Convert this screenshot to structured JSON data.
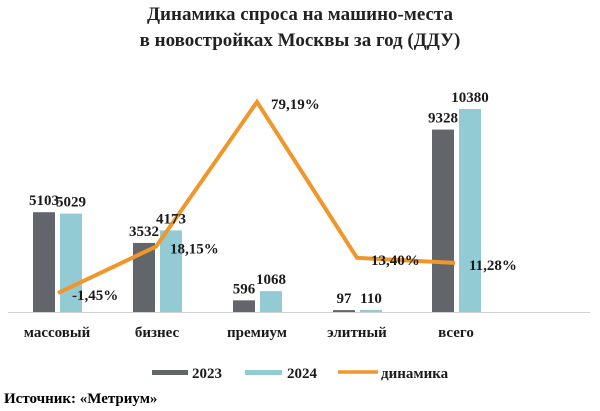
{
  "chart_data": {
    "type": "bar",
    "title": [
      "Динамика спроса на машино-места",
      "в новостройках Москвы за год (ДДУ)"
    ],
    "categories": [
      "массовый",
      "бизнес",
      "премиум",
      "элитный",
      "всего"
    ],
    "series": [
      {
        "name": "2023",
        "type": "bar",
        "color": "#62666b",
        "values": [
          5103,
          3532,
          596,
          97,
          9328
        ],
        "labels": [
          "5103",
          "3532",
          "596",
          "97",
          "9328"
        ]
      },
      {
        "name": "2024",
        "type": "bar",
        "color": "#92cbd3",
        "values": [
          5029,
          4173,
          1068,
          110,
          10380
        ],
        "labels": [
          "5029",
          "4173",
          "1068",
          "110",
          "10380"
        ]
      },
      {
        "name": "динамика",
        "type": "line",
        "color": "#f0962a",
        "values": [
          -1.45,
          18.15,
          79.19,
          13.4,
          11.28
        ],
        "labels": [
          "-1,45%",
          "18,15%",
          "79,19%",
          "13,40%",
          "11,28%"
        ],
        "unit": "%"
      }
    ],
    "xlabel": "",
    "ylabel": "",
    "grid": false,
    "legend_position": "bottom",
    "source": "Источник: «Метриум»"
  }
}
